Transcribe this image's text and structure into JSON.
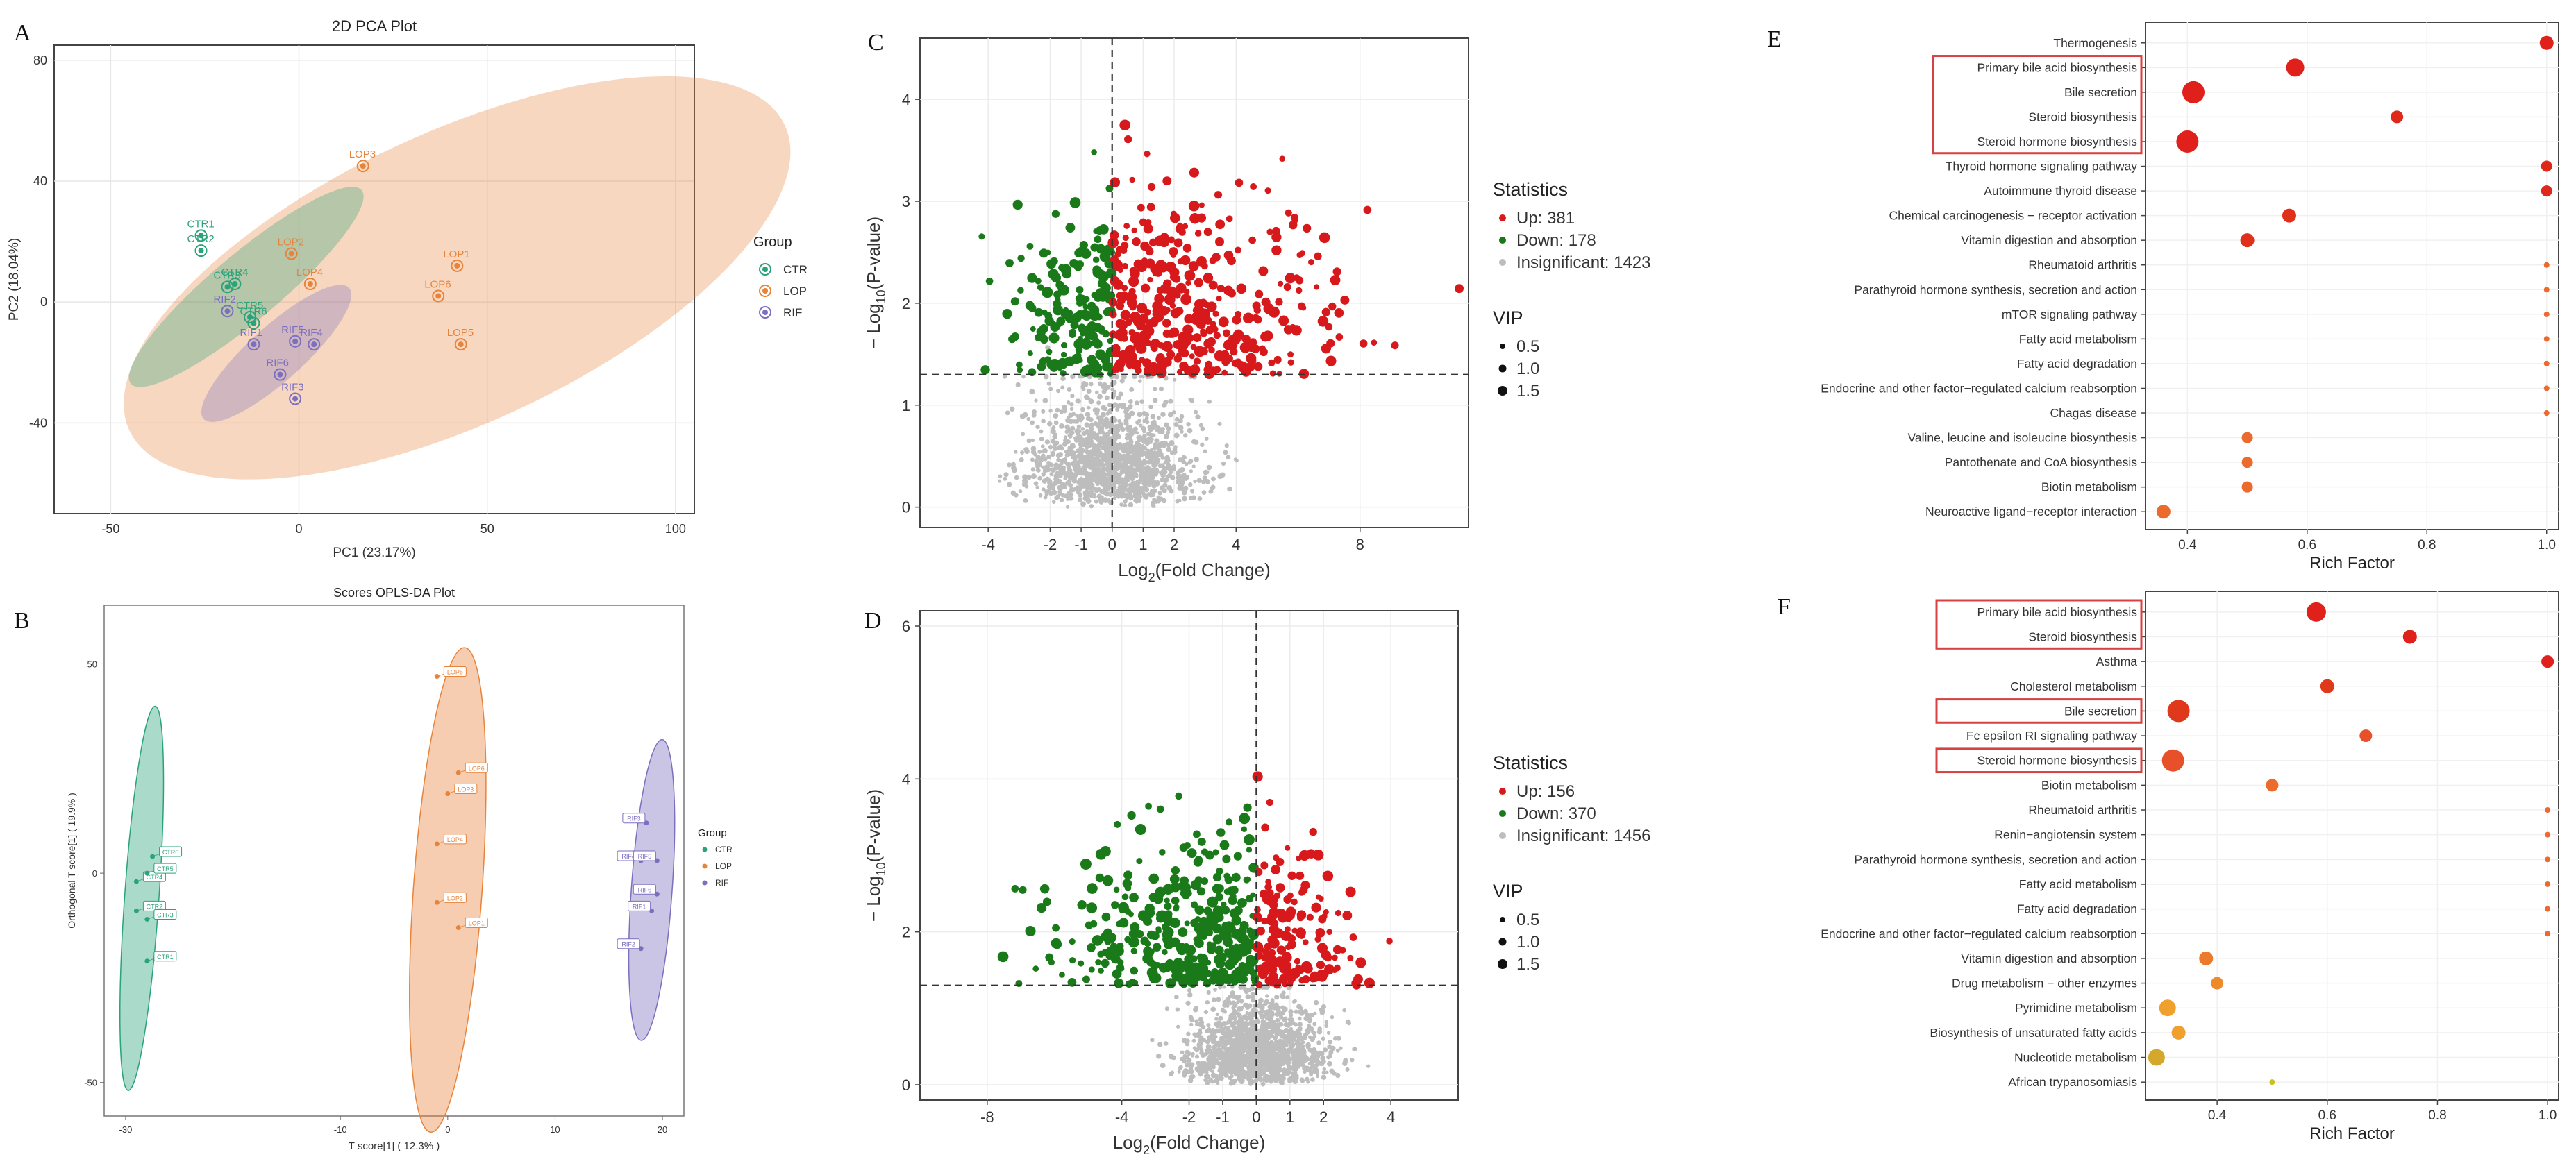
{
  "panel_labels": [
    "A",
    "B",
    "C",
    "D",
    "E",
    "F"
  ],
  "colors": {
    "ctr": "#2aa37a",
    "lop": "#e8833a",
    "rif": "#7b6fbf",
    "up": "#d7191c",
    "down": "#1a7a1a",
    "insig": "#bdbdbd",
    "highlight": "#d94040"
  },
  "chart_data": [
    {
      "id": "A",
      "type": "scatter",
      "title": "2D PCA Plot",
      "xlabel": "PC1 (23.17%)",
      "ylabel": "PC2 (18.04%)",
      "xlim": [
        -65,
        105
      ],
      "ylim": [
        -70,
        85
      ],
      "xticks": [
        "-50",
        "0",
        "50",
        "100"
      ],
      "yticks": [
        "-40",
        "0",
        "40",
        "80"
      ],
      "legend_title": "Group",
      "legend": [
        "CTR",
        "LOP",
        "RIF"
      ],
      "points": [
        {
          "label": "CTR1",
          "group": "CTR",
          "x": -26,
          "y": 22
        },
        {
          "label": "CTR2",
          "group": "CTR",
          "x": -26,
          "y": 17
        },
        {
          "label": "CTR4",
          "group": "CTR",
          "x": -17,
          "y": 6
        },
        {
          "label": "CTR3",
          "group": "CTR",
          "x": -19,
          "y": 5
        },
        {
          "label": "CTR5",
          "group": "CTR",
          "x": -13,
          "y": -5
        },
        {
          "label": "CTR6",
          "group": "CTR",
          "x": -12,
          "y": -7
        },
        {
          "label": "LOP3",
          "group": "LOP",
          "x": 17,
          "y": 45
        },
        {
          "label": "LOP2",
          "group": "LOP",
          "x": -2,
          "y": 16
        },
        {
          "label": "LOP4",
          "group": "LOP",
          "x": 3,
          "y": 6
        },
        {
          "label": "LOP1",
          "group": "LOP",
          "x": 42,
          "y": 12
        },
        {
          "label": "LOP6",
          "group": "LOP",
          "x": 37,
          "y": 2
        },
        {
          "label": "LOP5",
          "group": "LOP",
          "x": 43,
          "y": -14
        },
        {
          "label": "RIF2",
          "group": "RIF",
          "x": -19,
          "y": -3
        },
        {
          "label": "RIF1",
          "group": "RIF",
          "x": -12,
          "y": -14
        },
        {
          "label": "RIF5",
          "group": "RIF",
          "x": -1,
          "y": -13
        },
        {
          "label": "RIF4",
          "group": "RIF",
          "x": 4,
          "y": -14
        },
        {
          "label": "RIF6",
          "group": "RIF",
          "x": -5,
          "y": -24
        },
        {
          "label": "RIF3",
          "group": "RIF",
          "x": -1,
          "y": -32
        }
      ]
    },
    {
      "id": "B",
      "type": "scatter",
      "title": "Scores OPLS-DA Plot",
      "xlabel": "T score[1] ( 12.3% )",
      "ylabel": "Orthogonal T score[1] ( 19.9% )",
      "xlim": [
        -32,
        22
      ],
      "ylim": [
        -58,
        64
      ],
      "xticks": [
        "-30",
        "-10",
        "0",
        "10",
        "20"
      ],
      "yticks": [
        "-50",
        "0",
        "50"
      ],
      "legend_title": "Group",
      "legend": [
        "CTR",
        "LOP",
        "RIF"
      ],
      "points": [
        {
          "label": "CTR6",
          "group": "CTR",
          "x": -27.5,
          "y": 4
        },
        {
          "label": "CTR4",
          "group": "CTR",
          "x": -29,
          "y": -2
        },
        {
          "label": "CTR5",
          "group": "CTR",
          "x": -28,
          "y": 0
        },
        {
          "label": "CTR2",
          "group": "CTR",
          "x": -29,
          "y": -9
        },
        {
          "label": "CTR3",
          "group": "CTR",
          "x": -28,
          "y": -11
        },
        {
          "label": "CTR1",
          "group": "CTR",
          "x": -28,
          "y": -21
        },
        {
          "label": "LOP5",
          "group": "LOP",
          "x": -1,
          "y": 47
        },
        {
          "label": "LOP6",
          "group": "LOP",
          "x": 1,
          "y": 24
        },
        {
          "label": "LOP3",
          "group": "LOP",
          "x": 0,
          "y": 19
        },
        {
          "label": "LOP4",
          "group": "LOP",
          "x": -1,
          "y": 7
        },
        {
          "label": "LOP2",
          "group": "LOP",
          "x": -1,
          "y": -7
        },
        {
          "label": "LOP1",
          "group": "LOP",
          "x": 1,
          "y": -13
        },
        {
          "label": "RIF3",
          "group": "RIF",
          "x": 18.5,
          "y": 12
        },
        {
          "label": "RIF4",
          "group": "RIF",
          "x": 18,
          "y": 3
        },
        {
          "label": "RIF5",
          "group": "RIF",
          "x": 19.5,
          "y": 3
        },
        {
          "label": "RIF6",
          "group": "RIF",
          "x": 19.5,
          "y": -5
        },
        {
          "label": "RIF1",
          "group": "RIF",
          "x": 19,
          "y": -9
        },
        {
          "label": "RIF2",
          "group": "RIF",
          "x": 18,
          "y": -18
        }
      ]
    },
    {
      "id": "C",
      "type": "scatter",
      "subtype": "volcano",
      "xlabel": "Log2(Fold Change)",
      "ylabel": "− Log10(P-value)",
      "xlim": [
        -6.2,
        11.5
      ],
      "ylim": [
        -0.2,
        4.6
      ],
      "xticks": [
        -4,
        -2,
        -1,
        0,
        1,
        2,
        4,
        8
      ],
      "yticks": [
        0,
        1,
        2,
        3,
        4
      ],
      "threshold_y": 1.3,
      "legend_title": "Statistics",
      "legend": [
        "Up: 381",
        "Down: 178",
        "Insignificant: 1423"
      ],
      "counts": {
        "up": 381,
        "down": 178,
        "insignificant": 1423
      },
      "vip_title": "VIP",
      "vip_sizes": [
        "0.5",
        "1.0",
        "1.5"
      ]
    },
    {
      "id": "D",
      "type": "scatter",
      "subtype": "volcano",
      "xlabel": "Log2(Fold Change)",
      "ylabel": "− Log10(P-value)",
      "xlim": [
        -10,
        6
      ],
      "ylim": [
        -0.2,
        6.2
      ],
      "xticks": [
        -8,
        -4,
        -2,
        -1,
        0,
        1,
        2,
        4
      ],
      "yticks": [
        0,
        2,
        4,
        6
      ],
      "threshold_y": 1.3,
      "legend_title": "Statistics",
      "legend": [
        "Up: 156",
        "Down: 370",
        "Insignificant: 1456"
      ],
      "counts": {
        "up": 156,
        "down": 370,
        "insignificant": 1456
      },
      "vip_title": "VIP",
      "vip_sizes": [
        "0.5",
        "1.0",
        "1.5"
      ]
    },
    {
      "id": "E",
      "type": "scatter",
      "subtype": "bubble",
      "xlabel": "Rich Factor",
      "xlim": [
        0.33,
        1.02
      ],
      "xticks": [
        "0.4",
        "0.6",
        "0.8",
        "1.0"
      ],
      "highlight_groups": [
        [
          1,
          4
        ]
      ],
      "pathways": [
        {
          "name": "Thermogenesis",
          "rich": 1.0,
          "size": 10,
          "color": "#e0201a"
        },
        {
          "name": "Primary bile acid biosynthesis",
          "rich": 0.58,
          "size": 13,
          "color": "#e0201a"
        },
        {
          "name": "Bile secretion",
          "rich": 0.41,
          "size": 16,
          "color": "#e0201a"
        },
        {
          "name": "Steroid biosynthesis",
          "rich": 0.75,
          "size": 9,
          "color": "#e0281a"
        },
        {
          "name": "Steroid hormone biosynthesis",
          "rich": 0.4,
          "size": 16,
          "color": "#e0201a"
        },
        {
          "name": "Thyroid hormone signaling pathway",
          "rich": 1.0,
          "size": 8,
          "color": "#e0281a"
        },
        {
          "name": "Autoimmune thyroid disease",
          "rich": 1.0,
          "size": 8,
          "color": "#e0281a"
        },
        {
          "name": "Chemical carcinogenesis − receptor activation",
          "rich": 0.57,
          "size": 10,
          "color": "#e0301a"
        },
        {
          "name": "Vitamin digestion and absorption",
          "rich": 0.5,
          "size": 10,
          "color": "#e0301a"
        },
        {
          "name": "Rheumatoid arthritis",
          "rich": 1.0,
          "size": 4,
          "color": "#ec6a2c"
        },
        {
          "name": "Parathyroid hormone synthesis, secretion and action",
          "rich": 1.0,
          "size": 4,
          "color": "#ec6a2c"
        },
        {
          "name": "mTOR signaling pathway",
          "rich": 1.0,
          "size": 4,
          "color": "#ec6a2c"
        },
        {
          "name": "Fatty acid metabolism",
          "rich": 1.0,
          "size": 4,
          "color": "#ec6a2c"
        },
        {
          "name": "Fatty acid degradation",
          "rich": 1.0,
          "size": 4,
          "color": "#ec6a2c"
        },
        {
          "name": "Endocrine and other factor−regulated calcium reabsorption",
          "rich": 1.0,
          "size": 4,
          "color": "#ec6a2c"
        },
        {
          "name": "Chagas disease",
          "rich": 1.0,
          "size": 4,
          "color": "#ec6a2c"
        },
        {
          "name": "Valine, leucine and isoleucine biosynthesis",
          "rich": 0.5,
          "size": 8,
          "color": "#ec6a2c"
        },
        {
          "name": "Pantothenate and CoA biosynthesis",
          "rich": 0.5,
          "size": 8,
          "color": "#ec6a2c"
        },
        {
          "name": "Biotin metabolism",
          "rich": 0.5,
          "size": 8,
          "color": "#ec6a2c"
        },
        {
          "name": "Neuroactive ligand−receptor interaction",
          "rich": 0.36,
          "size": 10,
          "color": "#ec6a2c"
        }
      ]
    },
    {
      "id": "F",
      "type": "scatter",
      "subtype": "bubble",
      "xlabel": "Rich Factor",
      "xlim": [
        0.27,
        1.02
      ],
      "xticks": [
        "0.4",
        "0.6",
        "0.8",
        "1.0"
      ],
      "highlight_groups": [
        [
          0,
          1
        ],
        [
          4,
          4
        ],
        [
          6,
          6
        ]
      ],
      "pathways": [
        {
          "name": "Primary bile acid biosynthesis",
          "rich": 0.58,
          "size": 14,
          "color": "#e0201a"
        },
        {
          "name": "Steroid biosynthesis",
          "rich": 0.75,
          "size": 10,
          "color": "#e0201a"
        },
        {
          "name": "Asthma",
          "rich": 1.0,
          "size": 9,
          "color": "#e0201a"
        },
        {
          "name": "Cholesterol metabolism",
          "rich": 0.6,
          "size": 10,
          "color": "#e0381a"
        },
        {
          "name": "Bile secretion",
          "rich": 0.33,
          "size": 16,
          "color": "#e0381a"
        },
        {
          "name": "Fc epsilon RI signaling pathway",
          "rich": 0.67,
          "size": 9,
          "color": "#e8502a"
        },
        {
          "name": "Steroid hormone biosynthesis",
          "rich": 0.32,
          "size": 16,
          "color": "#e8502a"
        },
        {
          "name": "Biotin metabolism",
          "rich": 0.5,
          "size": 9,
          "color": "#ec6a2c"
        },
        {
          "name": "Rheumatoid arthritis",
          "rich": 1.0,
          "size": 4,
          "color": "#ec6a2c"
        },
        {
          "name": "Renin−angiotensin system",
          "rich": 1.0,
          "size": 4,
          "color": "#ec6a2c"
        },
        {
          "name": "Parathyroid hormone synthesis, secretion and action",
          "rich": 1.0,
          "size": 4,
          "color": "#ec6a2c"
        },
        {
          "name": "Fatty acid metabolism",
          "rich": 1.0,
          "size": 4,
          "color": "#ec6a2c"
        },
        {
          "name": "Fatty acid degradation",
          "rich": 1.0,
          "size": 4,
          "color": "#ec6a2c"
        },
        {
          "name": "Endocrine and other factor−regulated calcium reabsorption",
          "rich": 1.0,
          "size": 4,
          "color": "#ec6a2c"
        },
        {
          "name": "Vitamin digestion and absorption",
          "rich": 0.38,
          "size": 10,
          "color": "#ec7a2c"
        },
        {
          "name": "Drug metabolism − other enzymes",
          "rich": 0.4,
          "size": 9,
          "color": "#ec8a2c"
        },
        {
          "name": "Pyrimidine metabolism",
          "rich": 0.31,
          "size": 12,
          "color": "#f0a02c"
        },
        {
          "name": "Biosynthesis of unsaturated fatty acids",
          "rich": 0.33,
          "size": 10,
          "color": "#f0a02c"
        },
        {
          "name": "Nucleotide metabolism",
          "rich": 0.29,
          "size": 12,
          "color": "#d4a82c"
        },
        {
          "name": "African trypanosomiasis",
          "rich": 0.5,
          "size": 4,
          "color": "#c8c024"
        }
      ]
    }
  ]
}
